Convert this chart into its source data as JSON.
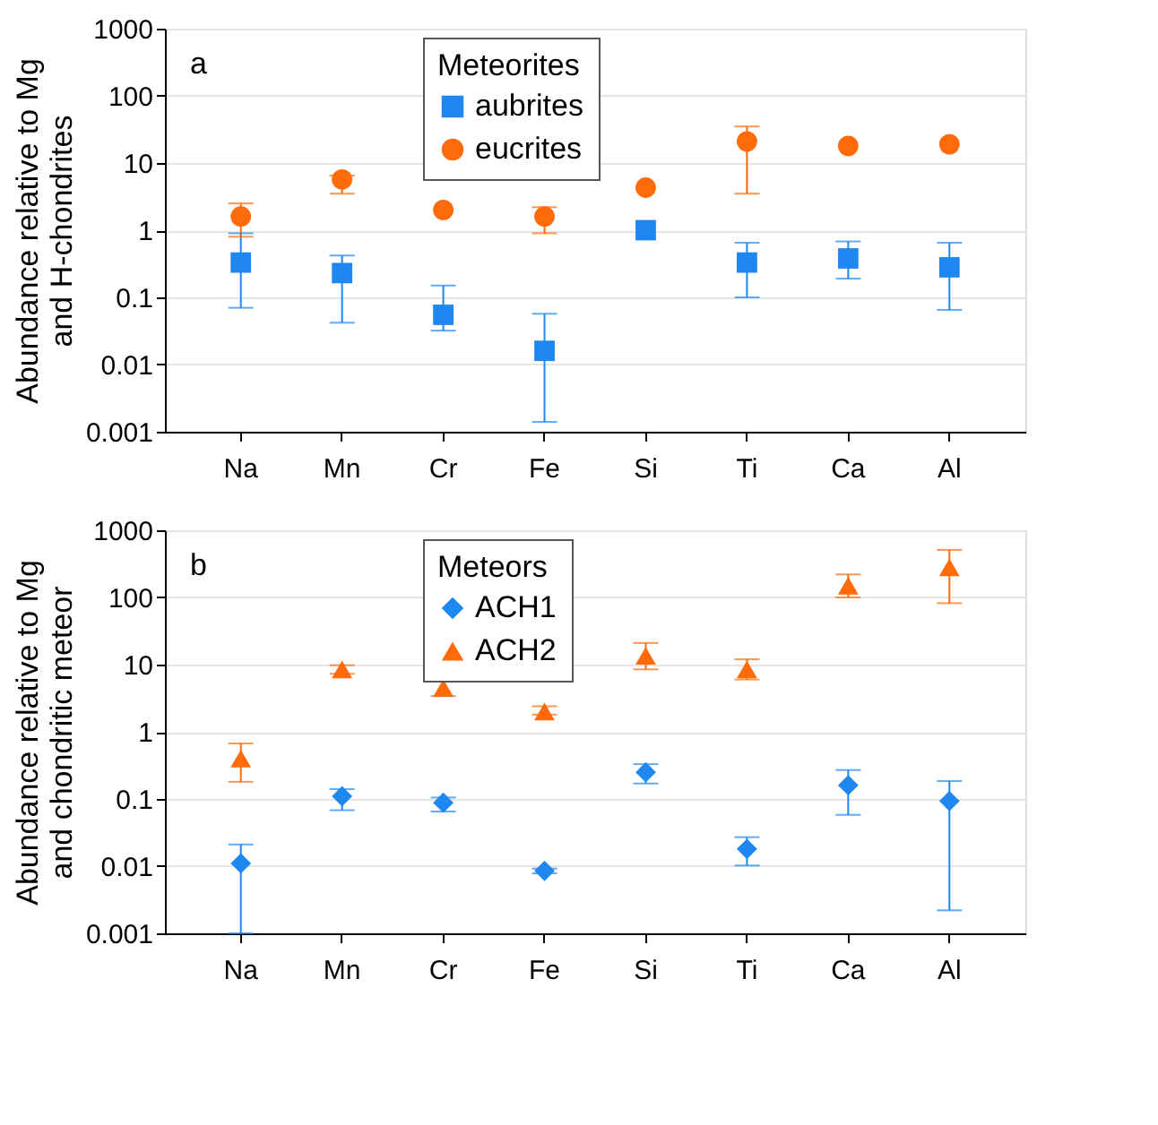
{
  "chart_data": [
    {
      "type": "scatter",
      "annotations": [
        "a"
      ],
      "ylabel": "Abundance relative to Mg\nand H-chondrites",
      "legend_title": "Meteorites",
      "legend": "top",
      "grid": "y",
      "log": true,
      "categories": [
        "Na",
        "Mn",
        "Cr",
        "Fe",
        "Si",
        "Ti",
        "Ca",
        "Al"
      ],
      "ylim": [
        0.001,
        1000
      ],
      "yticks": [
        0.001,
        0.01,
        0.1,
        1,
        10,
        100,
        1000
      ],
      "series": [
        {
          "name": "aubrites",
          "color": "#1e88f0",
          "marker": "square",
          "values": [
            0.33,
            0.23,
            0.055,
            0.016,
            1.0,
            0.33,
            0.38,
            0.28
          ],
          "errors": [
            [
              0.07,
              0.9
            ],
            [
              0.042,
              0.42
            ],
            [
              0.032,
              0.15
            ],
            [
              0.0014,
              0.057
            ],
            null,
            [
              0.1,
              0.65
            ],
            [
              0.19,
              0.68
            ],
            [
              0.065,
              0.65
            ]
          ]
        },
        {
          "name": "eucrites",
          "color": "#ff6a0a",
          "marker": "circle",
          "values": [
            1.6,
            5.7,
            2.0,
            1.6,
            4.3,
            21,
            18,
            19
          ],
          "errors": [
            [
              0.8,
              2.5
            ],
            [
              3.5,
              6.5
            ],
            null,
            [
              0.9,
              2.2
            ],
            null,
            [
              3.5,
              35
            ],
            null,
            null
          ]
        }
      ]
    },
    {
      "type": "scatter",
      "annotations": [
        "b"
      ],
      "ylabel": "Abundance relative to Mg\nand chondritic meteor",
      "legend_title": "Meteors",
      "legend": "top",
      "grid": "y",
      "log": true,
      "categories": [
        "Na",
        "Mn",
        "Cr",
        "Fe",
        "Si",
        "Ti",
        "Ca",
        "Al"
      ],
      "ylim": [
        0.001,
        1000
      ],
      "yticks": [
        0.001,
        0.01,
        0.1,
        1,
        10,
        100,
        1000
      ],
      "series": [
        {
          "name": "ACH1",
          "color": "#1e88f0",
          "marker": "diamond",
          "values": [
            0.011,
            0.11,
            0.088,
            0.0085,
            0.25,
            0.018,
            0.16,
            0.093
          ],
          "errors": [
            [
              0.001,
              0.021
            ],
            [
              0.068,
              0.14
            ],
            [
              0.065,
              0.105
            ],
            [
              0.0078,
              0.0092
            ],
            [
              0.17,
              0.33
            ],
            [
              0.0102,
              0.027
            ],
            [
              0.058,
              0.27
            ],
            [
              0.0022,
              0.185
            ]
          ]
        },
        {
          "name": "ACH2",
          "color": "#ff6a0a",
          "marker": "triangle",
          "values": [
            0.4,
            8.5,
            4.5,
            2.0,
            13.5,
            8.5,
            150,
            280
          ],
          "errors": [
            [
              0.18,
              0.67
            ],
            [
              7.3,
              9.8
            ],
            [
              3.4,
              6.0
            ],
            [
              1.8,
              2.4
            ],
            [
              8.5,
              21
            ],
            [
              6,
              12
            ],
            [
              100,
              220
            ],
            [
              82,
              510
            ]
          ]
        }
      ]
    }
  ]
}
